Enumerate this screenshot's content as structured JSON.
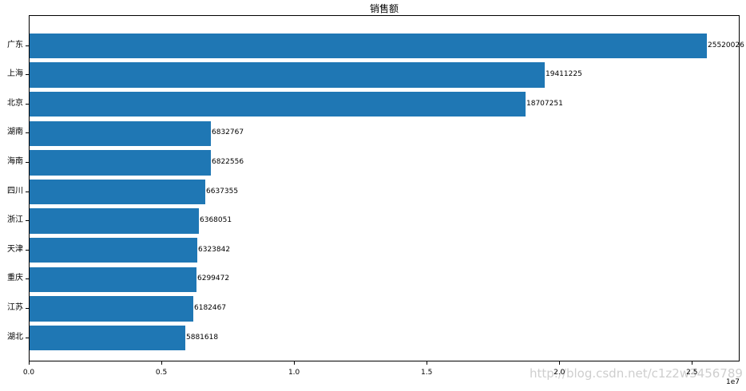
{
  "chart_data": {
    "type": "bar",
    "orientation": "horizontal",
    "title": "销售额",
    "categories": [
      "广东",
      "上海",
      "北京",
      "湖南",
      "海南",
      "四川",
      "浙江",
      "天津",
      "重庆",
      "江苏",
      "湖北"
    ],
    "values": [
      25520026,
      19411225,
      18707251,
      6832767,
      6822556,
      6637355,
      6368051,
      6323842,
      6299472,
      6182467,
      5881618
    ],
    "value_labels": [
      "25520026",
      "19411225",
      "18707251",
      "6832767",
      "6822556",
      "6637355",
      "6368051",
      "6323842",
      "6299472",
      "6182467",
      "5881618"
    ],
    "bar_color": "#1f77b4",
    "xlim": [
      0,
      26796027
    ],
    "x_ticks": [
      {
        "value": 0,
        "label": "0.0"
      },
      {
        "value": 5000000,
        "label": "0.5"
      },
      {
        "value": 10000000,
        "label": "1.0"
      },
      {
        "value": 15000000,
        "label": "1.5"
      },
      {
        "value": 20000000,
        "label": "2.0"
      },
      {
        "value": 25000000,
        "label": "2.5"
      }
    ],
    "x_offset_label": "1e7",
    "xlabel": "",
    "ylabel": "",
    "grid": false,
    "legend_position": "none",
    "axis_color": "#000000",
    "text_color": "#000000"
  },
  "watermark": {
    "text": "http://blog.csdn.net/c1z2w3456789",
    "color": "#bebebe"
  }
}
